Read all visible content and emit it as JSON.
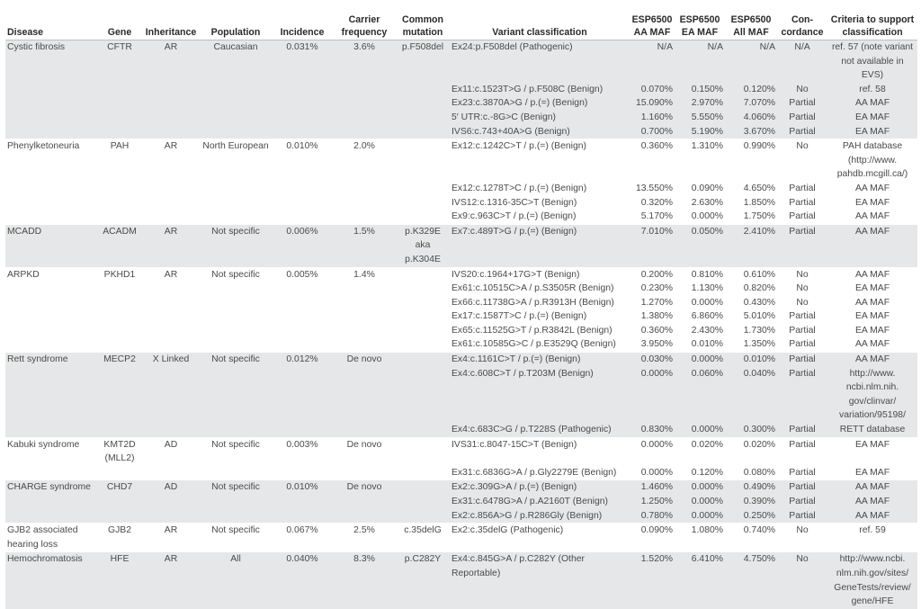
{
  "headers": [
    "Disease",
    "Gene",
    "Inheritance",
    "Population",
    "Incidence",
    "Carrier frequency",
    "Common mutation",
    "Variant classification",
    "ESP6500 AA MAF",
    "ESP6500 EA MAF",
    "ESP6500 All MAF",
    "Con-cordance",
    "Criteria to support classification"
  ],
  "groups": [
    {
      "disease": "Cystic fibrosis",
      "gene": "CFTR",
      "inheritance": "AR",
      "population": "Caucasian",
      "incidence": "0.031%",
      "carrier": "3.6%",
      "common": "p.F508del",
      "variants": [
        [
          "Ex24:p.F508del (Pathogenic)",
          "N/A",
          "N/A",
          "N/A",
          "N/A",
          "ref. 57 (note variant not available in EVS)"
        ],
        [
          "Ex11:c.1523T>G / p.F508C (Benign)",
          "0.070%",
          "0.150%",
          "0.120%",
          "No",
          "ref. 58"
        ],
        [
          "Ex23:c.3870A>G / p.(=) (Benign)",
          "15.090%",
          "2.970%",
          "7.070%",
          "Partial",
          "AA MAF"
        ],
        [
          "5′ UTR:c.-8G>C (Benign)",
          "1.160%",
          "5.550%",
          "4.060%",
          "Partial",
          "EA MAF"
        ],
        [
          "IVS6:c.743+40A>G (Benign)",
          "0.700%",
          "5.190%",
          "3.670%",
          "Partial",
          "EA MAF"
        ]
      ]
    },
    {
      "disease": "Phenylketoneuria",
      "gene": "PAH",
      "inheritance": "AR",
      "population": "North European",
      "incidence": "0.010%",
      "carrier": "2.0%",
      "common": "",
      "variants": [
        [
          "Ex12:c.1242C>T / p.(=) (Benign)",
          "0.360%",
          "1.310%",
          "0.990%",
          "No",
          "PAH database (http://www. pahdb.mcgill.ca/)"
        ],
        [
          "Ex12:c.1278T>C / p.(=) (Benign)",
          "13.550%",
          "0.090%",
          "4.650%",
          "Partial",
          "AA MAF"
        ],
        [
          "IVS12:c.1316-35C>T (Benign)",
          "0.320%",
          "2.630%",
          "1.850%",
          "Partial",
          "EA MAF"
        ],
        [
          "Ex9:c.963C>T / p.(=) (Benign)",
          "5.170%",
          "0.000%",
          "1.750%",
          "Partial",
          "AA MAF"
        ]
      ]
    },
    {
      "disease": "MCADD",
      "gene": "ACADM",
      "inheritance": "AR",
      "population": "Not specific",
      "incidence": "0.006%",
      "carrier": "1.5%",
      "common": "p.K329E aka p.K304E",
      "variants": [
        [
          "Ex7:c.489T>G / p.(=) (Benign)",
          "7.010%",
          "0.050%",
          "2.410%",
          "Partial",
          "AA MAF"
        ]
      ]
    },
    {
      "disease": "ARPKD",
      "gene": "PKHD1",
      "inheritance": "AR",
      "population": "Not specific",
      "incidence": "0.005%",
      "carrier": "1.4%",
      "common": "",
      "variants": [
        [
          "IVS20:c.1964+17G>T (Benign)",
          "0.200%",
          "0.810%",
          "0.610%",
          "No",
          "AA MAF"
        ],
        [
          "Ex61:c.10515C>A / p.S3505R (Benign)",
          "0.230%",
          "1.130%",
          "0.820%",
          "No",
          "EA MAF"
        ],
        [
          "Ex66:c.11738G>A / p.R3913H (Benign)",
          "1.270%",
          "0.000%",
          "0.430%",
          "No",
          "AA MAF"
        ],
        [
          "Ex17:c.1587T>C / p.(=) (Benign)",
          "1.380%",
          "6.860%",
          "5.010%",
          "Partial",
          "EA MAF"
        ],
        [
          "Ex65:c.11525G>T / p.R3842L (Benign)",
          "0.360%",
          "2.430%",
          "1.730%",
          "Partial",
          "EA MAF"
        ],
        [
          "Ex61:c.10585G>C / p.E3529Q (Benign)",
          "3.950%",
          "0.010%",
          "1.350%",
          "Partial",
          "AA MAF"
        ]
      ]
    },
    {
      "disease": "Rett syndrome",
      "gene": "MECP2",
      "inheritance": "X Linked",
      "population": "Not specific",
      "incidence": "0.012%",
      "carrier": "De novo",
      "common": "",
      "variants": [
        [
          "Ex4:c.1161C>T / p.(=) (Benign)",
          "0.030%",
          "0.000%",
          "0.010%",
          "Partial",
          "AA MAF"
        ],
        [
          "Ex4:c.608C>T / p.T203M (Benign)",
          "0.000%",
          "0.060%",
          "0.040%",
          "Partial",
          "http://www. ncbi.nlm.nih. gov/clinvar/ variation/95198/"
        ],
        [
          "Ex4:c.683C>G / p.T228S (Pathogenic)",
          "0.830%",
          "0.000%",
          "0.300%",
          "Partial",
          "RETT database"
        ]
      ]
    },
    {
      "disease": "Kabuki syndrome",
      "gene": "KMT2D (MLL2)",
      "inheritance": "AD",
      "population": "Not specific",
      "incidence": "0.003%",
      "carrier": "De novo",
      "common": "",
      "variants": [
        [
          "IVS31:c.8047-15C>T (Benign)",
          "0.000%",
          "0.020%",
          "0.020%",
          "Partial",
          "EA MAF"
        ],
        [
          "Ex31:c.6836G>A / p.Gly2279E (Benign)",
          "0.000%",
          "0.120%",
          "0.080%",
          "Partial",
          "EA MAF"
        ]
      ]
    },
    {
      "disease": "CHARGE syndrome",
      "gene": "CHD7",
      "inheritance": "AD",
      "population": "Not specific",
      "incidence": "0.010%",
      "carrier": "De novo",
      "common": "",
      "variants": [
        [
          "Ex2:c.309G>A / p.(=) (Benign)",
          "1.460%",
          "0.000%",
          "0.490%",
          "Partial",
          "AA MAF"
        ],
        [
          "Ex31:c.6478G>A / p.A2160T (Benign)",
          "1.250%",
          "0.000%",
          "0.390%",
          "Partial",
          "AA MAF"
        ],
        [
          "Ex2:c.856A>G / p.R286Gly (Benign)",
          "0.780%",
          "0.000%",
          "0.250%",
          "Partial",
          "AA MAF"
        ]
      ]
    },
    {
      "disease": "GJB2 associated hearing loss",
      "gene": "GJB2",
      "inheritance": "AR",
      "population": "Not specific",
      "incidence": "0.067%",
      "carrier": "2.5%",
      "common": "c.35delG",
      "variants": [
        [
          "Ex2:c.35delG (Pathogenic)",
          "0.090%",
          "1.080%",
          "0.740%",
          "No",
          "ref. 59"
        ]
      ]
    },
    {
      "disease": "Hemochromatosis",
      "gene": "HFE",
      "inheritance": "AR",
      "population": "All",
      "incidence": "0.040%",
      "carrier": "8.3%",
      "common": "p.C282Y",
      "variants": [
        [
          "Ex4:c.845G>A / p.C282Y (Other Reportable)",
          "1.520%",
          "6.410%",
          "4.750%",
          "No",
          "http://www.ncbi. nlm.nih.gov/sites/ GeneTests/review/ gene/HFE"
        ]
      ]
    }
  ]
}
